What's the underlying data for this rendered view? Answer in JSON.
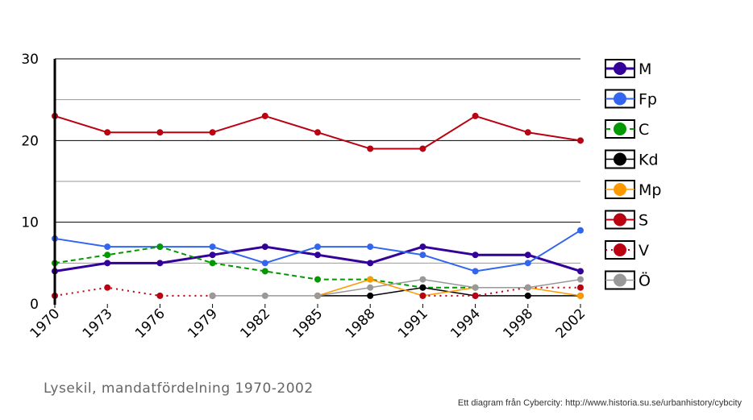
{
  "chart_data": {
    "type": "line",
    "title": "Lysekil, mandatfördelning 1970-2002",
    "credit": "Ett diagram från Cybercity: http://www.historia.su.se/urbanhistory/cybcity",
    "categories": [
      "1970",
      "1973",
      "1976",
      "1979",
      "1982",
      "1985",
      "1988",
      "1991",
      "1994",
      "1998",
      "2002"
    ],
    "ylim": [
      0,
      30
    ],
    "yticks": [
      0,
      10,
      20,
      30
    ],
    "minor_gridlines": [
      5,
      15,
      25
    ],
    "legend_position": "right",
    "series": [
      {
        "name": "M",
        "color": "#330099",
        "dash": "solid",
        "width": 3,
        "values": [
          4,
          5,
          5,
          6,
          7,
          6,
          5,
          7,
          6,
          6,
          4
        ]
      },
      {
        "name": "Fp",
        "color": "#3366ee",
        "dash": "solid",
        "width": 2,
        "values": [
          8,
          7,
          7,
          7,
          5,
          7,
          7,
          6,
          4,
          5,
          9
        ]
      },
      {
        "name": "C",
        "color": "#009900",
        "dash": "dashed",
        "width": 2,
        "values": [
          5,
          6,
          7,
          5,
          4,
          3,
          3,
          2,
          2,
          null,
          null
        ]
      },
      {
        "name": "Kd",
        "color": "#000000",
        "dash": "solid",
        "width": 1.5,
        "values": [
          null,
          null,
          null,
          null,
          null,
          1,
          1,
          2,
          1,
          1,
          1
        ]
      },
      {
        "name": "Mp",
        "color": "#ff9900",
        "dash": "solid",
        "width": 1.5,
        "values": [
          null,
          null,
          null,
          null,
          null,
          1,
          3,
          1,
          2,
          2,
          1
        ]
      },
      {
        "name": "S",
        "color": "#bb0011",
        "dash": "solid",
        "width": 2,
        "values": [
          23,
          21,
          21,
          21,
          23,
          21,
          19,
          19,
          23,
          21,
          20
        ]
      },
      {
        "name": "V",
        "color": "#bb0011",
        "dash": "dotted",
        "width": 2,
        "values": [
          1,
          2,
          1,
          1,
          null,
          null,
          null,
          1,
          1,
          2,
          2
        ]
      },
      {
        "name": "Ö",
        "color": "#999999",
        "dash": "solid",
        "width": 1.5,
        "values": [
          null,
          null,
          null,
          1,
          1,
          1,
          2,
          3,
          2,
          2,
          3
        ]
      }
    ]
  }
}
